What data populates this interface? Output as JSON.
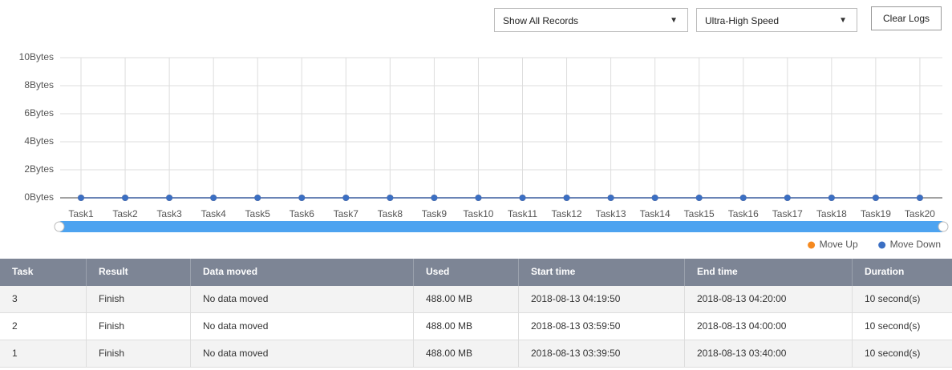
{
  "controls": {
    "filter": "Show All Records",
    "speed": "Ultra-High Speed",
    "clear_button": "Clear Logs"
  },
  "chart": {
    "type": "line",
    "categories": [
      "Task1",
      "Task2",
      "Task3",
      "Task4",
      "Task5",
      "Task6",
      "Task7",
      "Task8",
      "Task9",
      "Task10",
      "Task11",
      "Task12",
      "Task13",
      "Task14",
      "Task15",
      "Task16",
      "Task17",
      "Task18",
      "Task19",
      "Task20"
    ],
    "series": [
      {
        "name": "Move Up",
        "color": "#f5891f",
        "values": [
          0,
          0,
          0,
          0,
          0,
          0,
          0,
          0,
          0,
          0,
          0,
          0,
          0,
          0,
          0,
          0,
          0,
          0,
          0,
          0
        ]
      },
      {
        "name": "Move Down",
        "color": "#3b6fc3",
        "values": [
          0,
          0,
          0,
          0,
          0,
          0,
          0,
          0,
          0,
          0,
          0,
          0,
          0,
          0,
          0,
          0,
          0,
          0,
          0,
          0
        ]
      }
    ],
    "ylim": [
      0,
      10
    ],
    "yticks": [
      {
        "value": 0,
        "label": "0Bytes"
      },
      {
        "value": 2,
        "label": "2Bytes"
      },
      {
        "value": 4,
        "label": "4Bytes"
      },
      {
        "value": 6,
        "label": "6Bytes"
      },
      {
        "value": 8,
        "label": "8Bytes"
      },
      {
        "value": 10,
        "label": "10Bytes"
      }
    ],
    "grid": true,
    "legend": "bottom-right"
  },
  "table": {
    "columns": [
      "Task",
      "Result",
      "Data moved",
      "Used",
      "Start time",
      "End time",
      "Duration"
    ],
    "rows": [
      [
        "3",
        "Finish",
        "No data moved",
        "488.00 MB",
        "2018-08-13 04:19:50",
        "2018-08-13 04:20:00",
        "10 second(s)"
      ],
      [
        "2",
        "Finish",
        "No data moved",
        "488.00 MB",
        "2018-08-13 03:59:50",
        "2018-08-13 04:00:00",
        "10 second(s)"
      ],
      [
        "1",
        "Finish",
        "No data moved",
        "488.00 MB",
        "2018-08-13 03:39:50",
        "2018-08-13 03:40:00",
        "10 second(s)"
      ]
    ]
  }
}
